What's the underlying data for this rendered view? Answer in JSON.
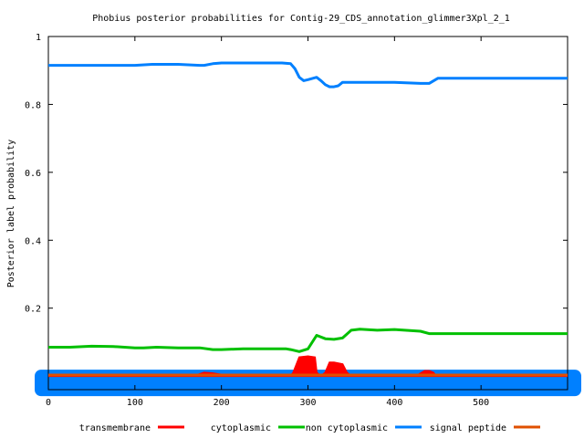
{
  "chart_data": {
    "type": "line",
    "title": "Phobius posterior probabilities for Contig-29_CDS_annotation_glimmer3Xpl_2_1",
    "xlabel": "",
    "ylabel": "Posterior label probability",
    "xlim": [
      0,
      600
    ],
    "ylim": [
      -0.04,
      1
    ],
    "x_ticks": [
      "0",
      "100",
      "200",
      "300",
      "400",
      "500"
    ],
    "y_ticks": [
      "0.2",
      "0.4",
      "0.6",
      "0.8",
      "1"
    ],
    "grid": false,
    "legend_position": "bottom",
    "series": [
      {
        "name": "transmembrane",
        "color": "#ff0000",
        "style": "filled-area",
        "x": [
          0,
          100,
          102,
          110,
          120,
          125,
          170,
          173,
          180,
          190,
          200,
          203,
          280,
          283,
          290,
          300,
          308,
          310,
          315,
          320,
          325,
          330,
          340,
          345,
          350,
          425,
          428,
          435,
          440,
          445,
          448,
          600
        ],
        "y": [
          0,
          0,
          0.002,
          0.003,
          0.002,
          0,
          0,
          0.004,
          0.01,
          0.008,
          0.004,
          0,
          0,
          0.01,
          0.055,
          0.058,
          0.055,
          0.01,
          0,
          0.01,
          0.04,
          0.04,
          0.035,
          0.01,
          0,
          0,
          0.005,
          0.015,
          0.015,
          0.01,
          0,
          0
        ]
      },
      {
        "name": "cytoplasmic",
        "color": "#00c000",
        "style": "line",
        "x": [
          0,
          25,
          50,
          75,
          100,
          110,
          125,
          150,
          175,
          190,
          200,
          225,
          250,
          275,
          280,
          290,
          300,
          310,
          320,
          330,
          340,
          350,
          360,
          380,
          400,
          430,
          440,
          450,
          500,
          600
        ],
        "y": [
          0.085,
          0.085,
          0.088,
          0.087,
          0.083,
          0.083,
          0.085,
          0.083,
          0.083,
          0.078,
          0.078,
          0.08,
          0.08,
          0.08,
          0.078,
          0.072,
          0.08,
          0.12,
          0.11,
          0.108,
          0.112,
          0.135,
          0.138,
          0.135,
          0.137,
          0.132,
          0.125,
          0.125,
          0.125,
          0.125
        ]
      },
      {
        "name": "non cytoplasmic",
        "color": "#0080ff",
        "style": "line",
        "x": [
          0,
          50,
          100,
          120,
          150,
          175,
          180,
          190,
          200,
          225,
          250,
          270,
          280,
          285,
          290,
          295,
          300,
          310,
          315,
          320,
          325,
          330,
          335,
          340,
          350,
          400,
          430,
          440,
          450,
          500,
          600
        ],
        "y": [
          0.915,
          0.915,
          0.915,
          0.918,
          0.918,
          0.915,
          0.915,
          0.92,
          0.922,
          0.922,
          0.922,
          0.922,
          0.92,
          0.905,
          0.88,
          0.87,
          0.873,
          0.88,
          0.87,
          0.858,
          0.852,
          0.852,
          0.855,
          0.865,
          0.865,
          0.865,
          0.862,
          0.862,
          0.877,
          0.877,
          0.877
        ]
      },
      {
        "name": "signal peptide",
        "color": "#e05000",
        "style": "line",
        "x": [
          0,
          600
        ],
        "y": [
          0.003,
          0.003
        ]
      }
    ]
  },
  "legend": [
    {
      "label": "transmembrane",
      "color": "#ff0000"
    },
    {
      "label": "cytoplasmic",
      "color": "#00c000"
    },
    {
      "label": "non cytoplasmic",
      "color": "#0080ff"
    },
    {
      "label": "signal peptide",
      "color": "#e05000"
    }
  ]
}
